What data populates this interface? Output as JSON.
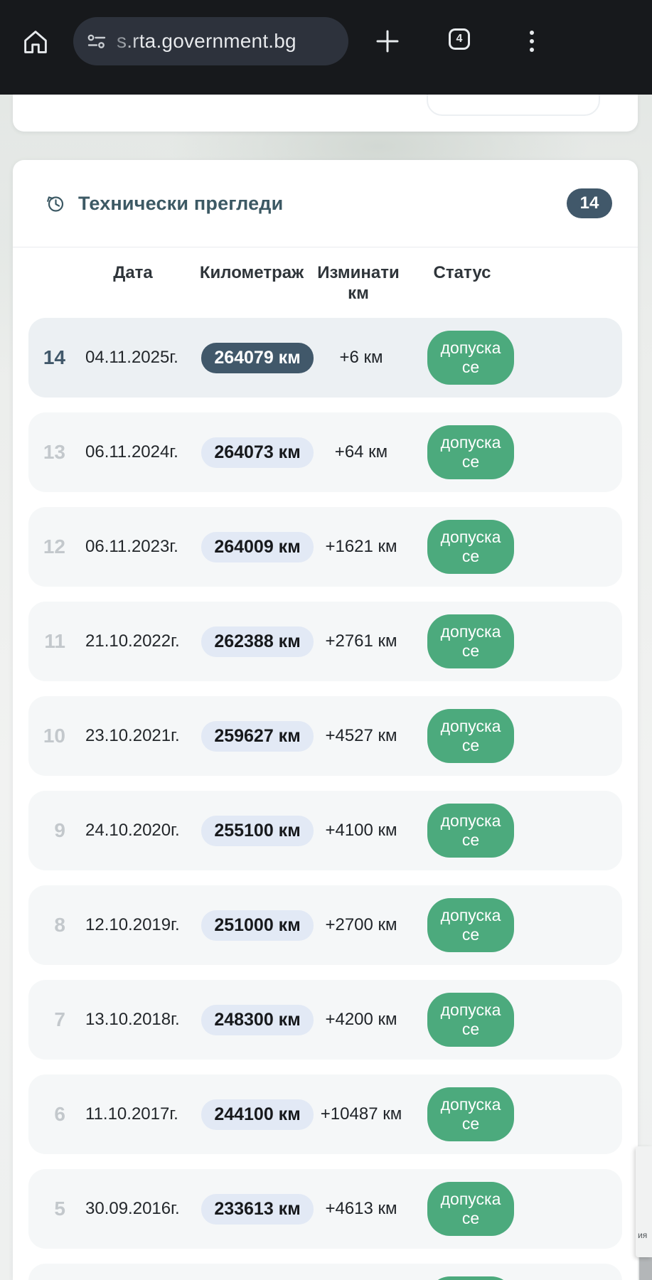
{
  "browser": {
    "url": "s.rta.government.bg",
    "tab_count": "4"
  },
  "card": {
    "title": "Технически прегледи",
    "count_badge": "14",
    "table": {
      "headers": [
        "Дата",
        "Километраж",
        "Изминати км",
        "Статус"
      ],
      "rows": [
        {
          "num": "14",
          "date": "04.11.2025г.",
          "km": "264079 км",
          "delta": "+6 км",
          "status": "допуска се",
          "highlight": true
        },
        {
          "num": "13",
          "date": "06.11.2024г.",
          "km": "264073 км",
          "delta": "+64 км",
          "status": "допуска се"
        },
        {
          "num": "12",
          "date": "06.11.2023г.",
          "km": "264009 км",
          "delta": "+1621 км",
          "status": "допуска се"
        },
        {
          "num": "11",
          "date": "21.10.2022г.",
          "km": "262388 км",
          "delta": "+2761 км",
          "status": "допуска се"
        },
        {
          "num": "10",
          "date": "23.10.2021г.",
          "km": "259627 км",
          "delta": "+4527 км",
          "status": "допуска се"
        },
        {
          "num": "9",
          "date": "24.10.2020г.",
          "km": "255100 км",
          "delta": "+4100 км",
          "status": "допуска се"
        },
        {
          "num": "8",
          "date": "12.10.2019г.",
          "km": "251000 км",
          "delta": "+2700 км",
          "status": "допуска се"
        },
        {
          "num": "7",
          "date": "13.10.2018г.",
          "km": "248300 км",
          "delta": "+4200 км",
          "status": "допуска се"
        },
        {
          "num": "6",
          "date": "11.10.2017г.",
          "km": "244100 км",
          "delta": "+10487 км",
          "status": "допуска се"
        },
        {
          "num": "5",
          "date": "30.09.2016г.",
          "km": "233613 км",
          "delta": "+4613 км",
          "status": "допуска се"
        },
        {
          "num": "",
          "date": "",
          "km": "",
          "delta": "",
          "status": "",
          "partial": true
        }
      ]
    }
  },
  "side_tab": {
    "label": "ия"
  },
  "colors": {
    "toolbar_bg": "#17191c",
    "urlbar_bg": "#2d323c",
    "accent_slate": "#41586a",
    "title_color": "#3c5964",
    "status_green": "#4caa7d",
    "km_badge_bg": "#e2e9f5",
    "row_bg": "#f5f7f8",
    "row_highlight_bg": "#ecf0f3"
  }
}
